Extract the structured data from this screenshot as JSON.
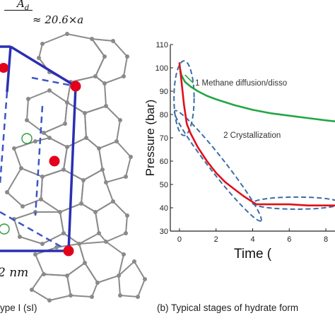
{
  "left_panel": {
    "formula_var": "A",
    "formula_sub": "d",
    "formula_rhs": "≈ 20.6×a",
    "size_label": "2 nm",
    "caption": "ype I (sI)"
  },
  "colors": {
    "cage_blue": "#2b2fb3",
    "cage_dashed": "#3a55c8",
    "atom_red": "#e3001b",
    "atom_green": "#2a9a3a",
    "framework_gray": "#8a8a8a",
    "methane_line": "#22a644",
    "crystal_line": "#e0101a",
    "ellipse": "#3b6ea5"
  },
  "chart_data": {
    "type": "line",
    "xlabel": "Time (",
    "ylabel": "Pressure (bar)",
    "xlim": [
      -0.5,
      8.5
    ],
    "ylim": [
      30,
      110
    ],
    "x_ticks": [
      0,
      2,
      4,
      6,
      8
    ],
    "x_tick_labels": [
      "0",
      "2",
      "4",
      "6",
      "8"
    ],
    "y_ticks": [
      30,
      40,
      50,
      60,
      70,
      80,
      90,
      100,
      110
    ],
    "y_tick_labels": [
      "30",
      "40",
      "50",
      "60",
      "70",
      "80",
      "90",
      "100",
      "110"
    ],
    "grid": false,
    "caption": "(b) Typical stages of hydrate form",
    "series": [
      {
        "color": "#22a644",
        "x": [
          0,
          0.1,
          0.3,
          0.6,
          1.0,
          1.5,
          2.0,
          3.0,
          4.0,
          5.0,
          6.0,
          7.0,
          8.0,
          8.6
        ],
        "y": [
          101,
          97,
          94,
          92,
          90,
          88,
          86.5,
          84,
          82,
          80.5,
          79.5,
          78.5,
          77.5,
          77
        ]
      },
      {
        "color": "#e0101a",
        "x": [
          0,
          0.1,
          0.25,
          0.4,
          0.6,
          1.0,
          1.5,
          2.0,
          2.5,
          3.0,
          3.5,
          4.0,
          4.2,
          5.0,
          6.0,
          7.0,
          8.0,
          8.6
        ],
        "y": [
          102,
          95,
          84,
          76,
          72,
          66,
          60,
          55,
          51,
          48,
          45,
          42.5,
          41.5,
          41.5,
          41.5,
          41,
          41,
          41
        ]
      }
    ],
    "annotations": [
      {
        "text": "1 Methane diffusion/disso",
        "x": 0.85,
        "y": 92.5
      },
      {
        "text": "2 Crystallization",
        "x": 2.4,
        "y": 70
      }
    ],
    "ellipses": [
      {
        "cx": 0.25,
        "cy": 87,
        "rx": 0.55,
        "ry": 16
      },
      {
        "cx": 2.1,
        "cy": 58,
        "rx": 2.35,
        "ry": 6.5,
        "rotate_deg": 52
      },
      {
        "cx": 6.4,
        "cy": 42,
        "rx": 2.4,
        "ry": 2.6
      }
    ]
  }
}
